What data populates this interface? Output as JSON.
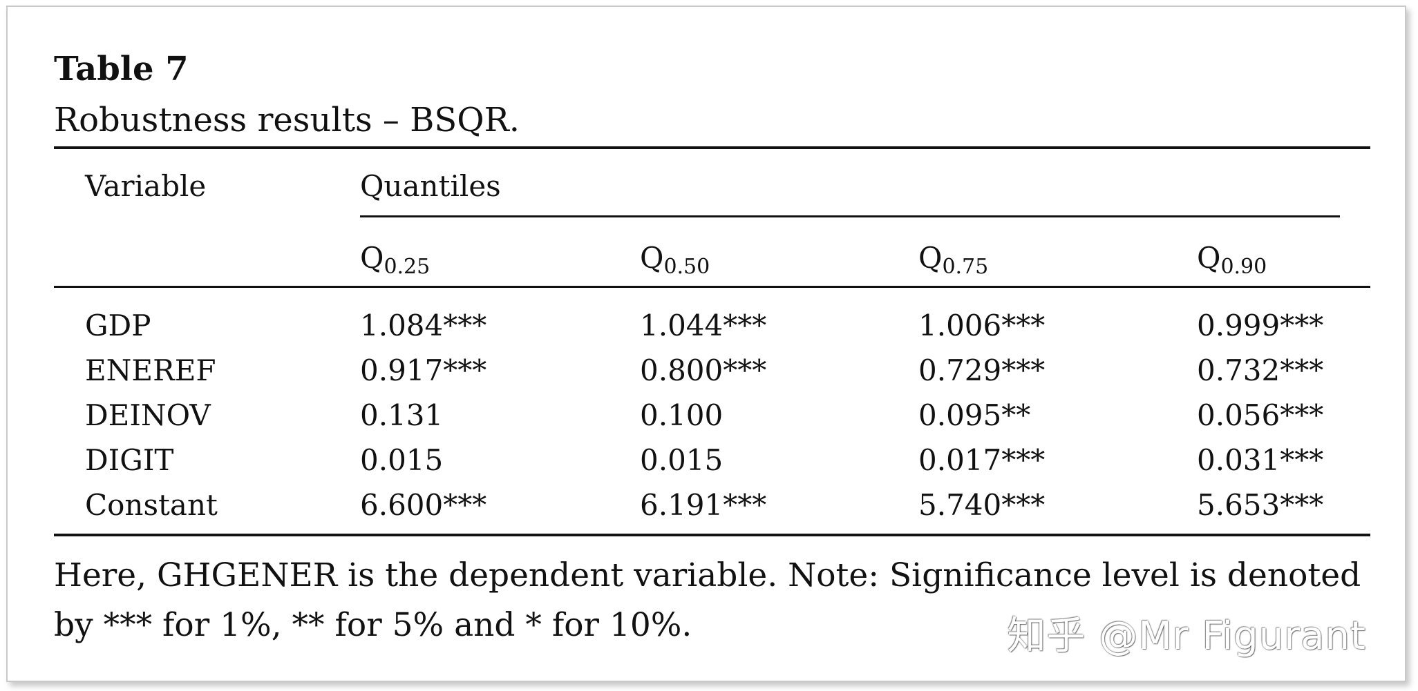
{
  "caption": {
    "label": "Table 7",
    "title": "Robustness results – BSQR."
  },
  "table": {
    "variable_header": "Variable",
    "group_header": "Quantiles",
    "quantiles": [
      {
        "base": "Q",
        "sub": "0.25"
      },
      {
        "base": "Q",
        "sub": "0.50"
      },
      {
        "base": "Q",
        "sub": "0.75"
      },
      {
        "base": "Q",
        "sub": "0.90"
      }
    ],
    "rows": [
      {
        "variable": "GDP",
        "values": [
          "1.084***",
          "1.044***",
          "1.006***",
          "0.999***"
        ]
      },
      {
        "variable": "ENEREF",
        "values": [
          "0.917***",
          "0.800***",
          "0.729***",
          "0.732***"
        ]
      },
      {
        "variable": "DEINOV",
        "values": [
          "0.131",
          "0.100",
          "0.095**",
          "0.056***"
        ]
      },
      {
        "variable": "DIGIT",
        "values": [
          "0.015",
          "0.015",
          "0.017***",
          "0.031***"
        ]
      },
      {
        "variable": "Constant",
        "values": [
          "6.600***",
          "6.191***",
          "5.740***",
          "5.653***"
        ]
      }
    ]
  },
  "note": {
    "line1": "Here, GHGENER is the dependent variable. Note: Significance level is denoted",
    "line2": "by *** for 1%, ** for 5% and * for 10%."
  },
  "watermark": "知乎 @Mr Figurant"
}
